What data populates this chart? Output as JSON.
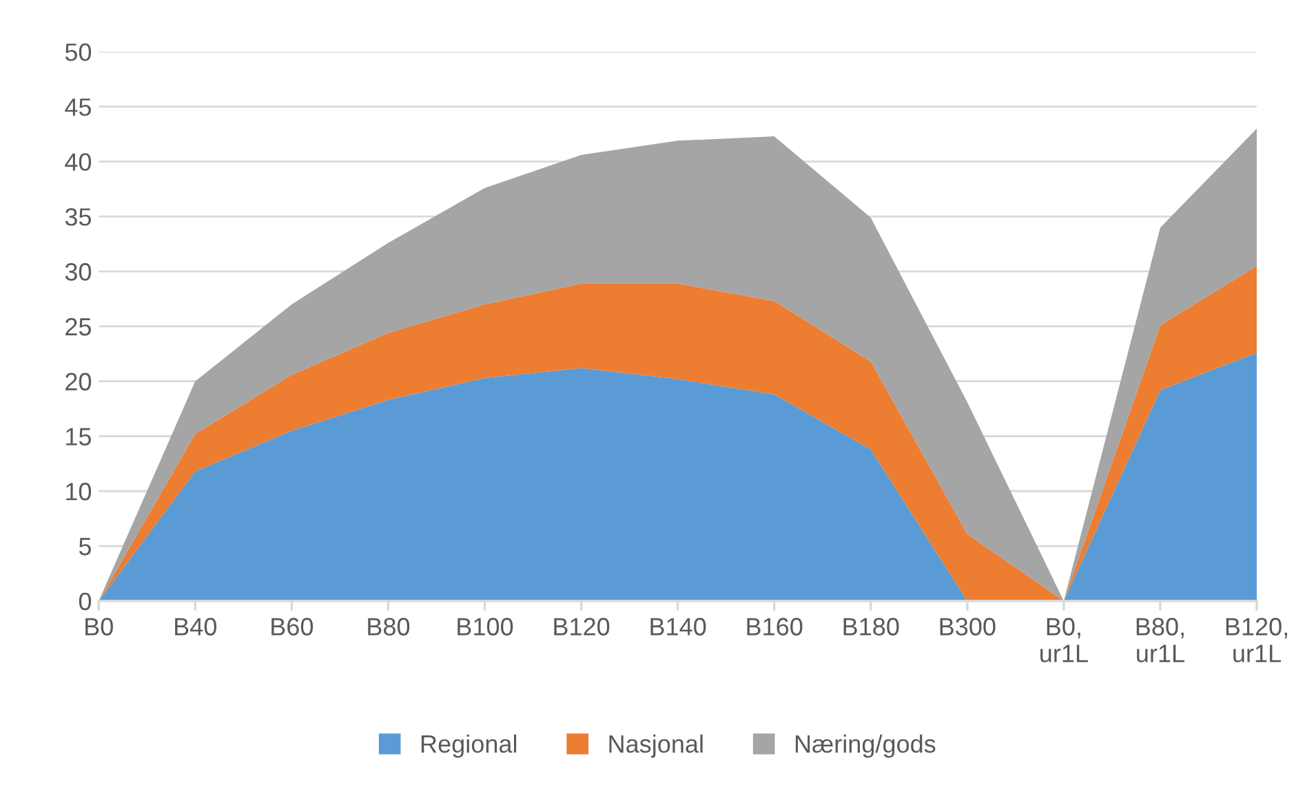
{
  "chart_data": {
    "type": "area",
    "stacked": true,
    "categories": [
      "B0",
      "B40",
      "B60",
      "B80",
      "B100",
      "B120",
      "B140",
      "B160",
      "B180",
      "B300",
      "B0,\nur1L",
      "B80,\nur1L",
      "B120,\nur1L"
    ],
    "series": [
      {
        "name": "Regional",
        "color": "#5b9bd5",
        "values": [
          0,
          11.8,
          15.5,
          18.3,
          20.3,
          21.2,
          20.2,
          18.8,
          13.8,
          0,
          0,
          19.2,
          22.6
        ]
      },
      {
        "name": "Nasjonal",
        "color": "#ed7d31",
        "values": [
          0,
          3.4,
          5.1,
          6.1,
          6.7,
          7.7,
          8.7,
          8.5,
          8.0,
          6.1,
          0,
          5.9,
          7.9
        ]
      },
      {
        "name": "Næring/gods",
        "color": "#a5a5a5",
        "values": [
          0,
          4.8,
          6.4,
          8.2,
          10.6,
          11.7,
          13.0,
          15.0,
          13.1,
          12.0,
          0,
          8.9,
          12.5
        ]
      }
    ],
    "ylim": [
      0,
      50
    ],
    "yticks": [
      0,
      5,
      10,
      15,
      20,
      25,
      30,
      35,
      40,
      45,
      50
    ],
    "grid": "y",
    "legend": "bottom"
  }
}
